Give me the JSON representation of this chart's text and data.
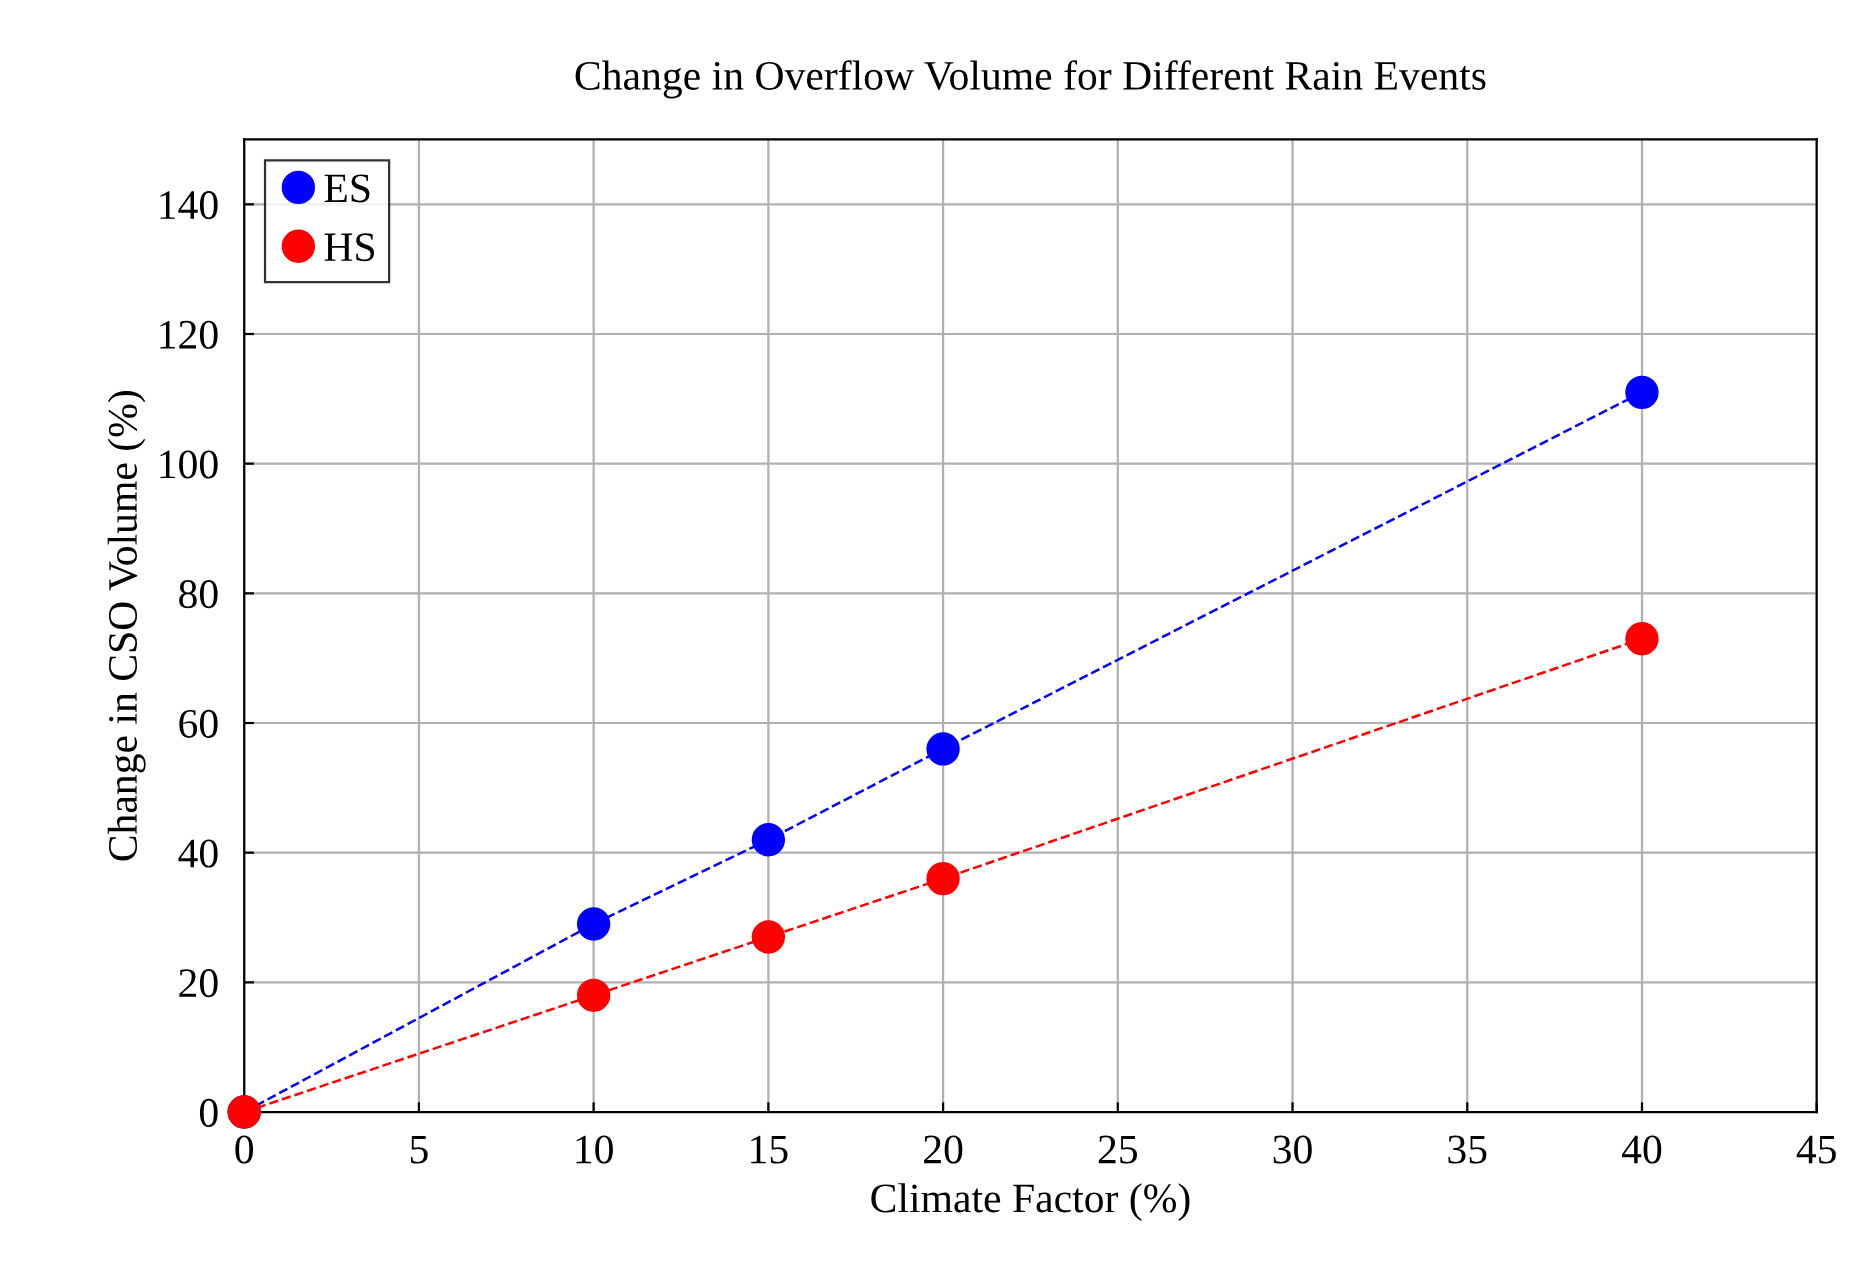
{
  "chart_data": {
    "type": "line",
    "title": "Change in Overflow Volume for Different Rain Events",
    "xlabel": "Climate Factor (%)",
    "ylabel": "Change in CSO Volume (%)",
    "x": [
      0,
      10,
      15,
      20,
      40
    ],
    "series": [
      {
        "name": "ES",
        "color": "#0000ff",
        "values": [
          0,
          29,
          42,
          56,
          111
        ]
      },
      {
        "name": "HS",
        "color": "#ff0000",
        "values": [
          0,
          18,
          27,
          36,
          73
        ]
      }
    ],
    "xlim": [
      0,
      45
    ],
    "xticks": [
      0,
      5,
      10,
      15,
      20,
      25,
      30,
      35,
      40,
      45
    ],
    "ylim": [
      0,
      150
    ],
    "yticks": [
      0,
      20,
      40,
      60,
      80,
      100,
      120,
      140
    ],
    "grid": true,
    "legend": "top left",
    "marker": "circle",
    "line_style": "dashed"
  }
}
